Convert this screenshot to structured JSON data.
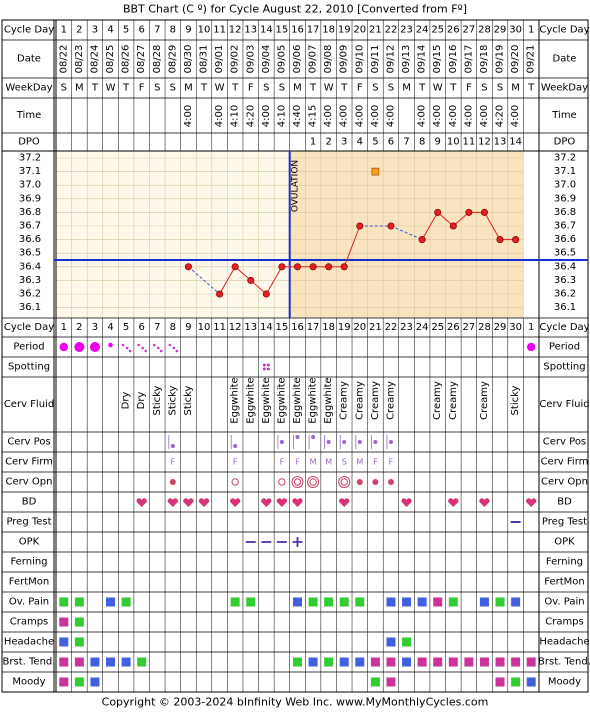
{
  "title": "BBT Chart (C º) for Cycle August 22, 2010  [Converted from Fº]",
  "copyright": "Copyright © 2003-2024 bInfinity Web Inc.    www.MyMonthlyCycles.com",
  "row_labels": {
    "cycle_day": "Cycle Day",
    "date": "Date",
    "weekday": "WeekDay",
    "time": "Time",
    "dpo": "DPO",
    "period": "Period",
    "spotting": "Spotting",
    "cerv_fluid": "Cerv Fluid",
    "cerv_pos": "Cerv Pos",
    "cerv_firm": "Cerv Firm",
    "cerv_opn": "Cerv Opn",
    "bd": "BD",
    "preg_test": "Preg Test",
    "opk": "OPK",
    "ferning": "Ferning",
    "fertmon": "FertMon",
    "ov_pain": "Ov. Pain",
    "cramps": "Cramps",
    "headache": "Headache",
    "brst_tend": "Brst. Tend.",
    "moody": "Moody"
  },
  "columns": {
    "cycle_day": [
      "1",
      "2",
      "3",
      "4",
      "5",
      "6",
      "7",
      "8",
      "9",
      "10",
      "11",
      "12",
      "13",
      "14",
      "15",
      "16",
      "17",
      "18",
      "19",
      "20",
      "21",
      "22",
      "23",
      "24",
      "25",
      "26",
      "27",
      "28",
      "29",
      "30",
      "1"
    ],
    "date": [
      "08/22",
      "08/23",
      "08/24",
      "08/25",
      "08/26",
      "08/27",
      "08/28",
      "08/29",
      "08/30",
      "08/31",
      "09/01",
      "09/02",
      "09/03",
      "09/04",
      "09/05",
      "09/06",
      "09/07",
      "09/08",
      "09/09",
      "09/10",
      "09/11",
      "09/12",
      "09/13",
      "09/14",
      "09/15",
      "09/16",
      "09/17",
      "09/18",
      "09/19",
      "09/20",
      "09/21"
    ],
    "weekday": [
      "S",
      "M",
      "T",
      "W",
      "T",
      "F",
      "S",
      "S",
      "M",
      "T",
      "W",
      "T",
      "F",
      "S",
      "S",
      "M",
      "T",
      "W",
      "T",
      "F",
      "S",
      "S",
      "M",
      "T",
      "W",
      "T",
      "F",
      "S",
      "S",
      "M",
      "T"
    ],
    "time": [
      "",
      "",
      "",
      "",
      "",
      "",
      "",
      "",
      "4:00",
      "",
      "4:00",
      "4:10",
      "4:20",
      "4:00",
      "4:10",
      "4:40",
      "4:15",
      "4:00",
      "4:00",
      "4:00",
      "4:00",
      "4:00",
      "",
      "4:00",
      "4:00",
      "4:00",
      "4:00",
      "4:00",
      "4:20",
      "4:00",
      ""
    ],
    "dpo": [
      "",
      "",
      "",
      "",
      "",
      "",
      "",
      "",
      "",
      "",
      "",
      "",
      "",
      "",
      "",
      "",
      "1",
      "2",
      "3",
      "4",
      "5",
      "6",
      "7",
      "8",
      "9",
      "10",
      "11",
      "12",
      "13",
      "14",
      ""
    ],
    "cerv_fluid": [
      "",
      "",
      "",
      "",
      "Dry",
      "Dry",
      "Sticky",
      "Sticky",
      "Sticky",
      "",
      "",
      "Eggwhite",
      "Eggwhite",
      "Eggwhite",
      "Eggwhite",
      "Eggwhite",
      "Eggwhite",
      "Eggwhite",
      "Creamy",
      "Creamy",
      "Creamy",
      "Creamy",
      "",
      "",
      "Creamy",
      "Creamy",
      "",
      "Creamy",
      "",
      "Sticky",
      ""
    ],
    "cerv_firm": [
      "",
      "",
      "",
      "",
      "",
      "",
      "",
      "F",
      "",
      "",
      "",
      "F",
      "",
      "",
      "F",
      "F",
      "M",
      "M",
      "S",
      "M",
      "F",
      "F",
      "",
      "",
      "",
      "",
      "",
      "",
      "",
      "",
      ""
    ],
    "period": [
      "medium",
      "heavy",
      "heavy",
      "light",
      "spot",
      "spot",
      "spot",
      "spot",
      "",
      "",
      "",
      "",
      "",
      "",
      "",
      "",
      "",
      "",
      "",
      "",
      "",
      "",
      "",
      "",
      "",
      "",
      "",
      "",
      "",
      "",
      "medium"
    ],
    "cerv_pos": [
      "",
      "",
      "",
      "",
      "",
      "",
      "",
      "low",
      "",
      "",
      "",
      "low",
      "",
      "",
      "mid",
      "high",
      "high",
      "mid",
      "mid",
      "mid",
      "mid",
      "mid",
      "",
      "",
      "",
      "",
      "",
      "",
      "",
      "",
      ""
    ],
    "cerv_opn": [
      "",
      "",
      "",
      "",
      "",
      "",
      "",
      "closed",
      "",
      "",
      "",
      "open",
      "",
      "",
      "open",
      "wide",
      "wide",
      "",
      "wide",
      "closed",
      "closed",
      "closed",
      "",
      "",
      "",
      "",
      "",
      "",
      "",
      "",
      ""
    ],
    "bd": [
      0,
      0,
      0,
      0,
      0,
      1,
      0,
      1,
      1,
      1,
      0,
      1,
      0,
      1,
      1,
      1,
      0,
      0,
      1,
      0,
      0,
      0,
      1,
      0,
      0,
      1,
      0,
      1,
      0,
      0,
      1
    ],
    "preg_test": [
      "",
      "",
      "",
      "",
      "",
      "",
      "",
      "",
      "",
      "",
      "",
      "",
      "",
      "",
      "",
      "",
      "",
      "",
      "",
      "",
      "",
      "",
      "",
      "",
      "",
      "",
      "",
      "",
      "",
      "neg",
      ""
    ],
    "opk": [
      "",
      "",
      "",
      "",
      "",
      "",
      "",
      "",
      "",
      "",
      "",
      "",
      "neg",
      "neg",
      "neg",
      "pos",
      "",
      "",
      "",
      "",
      "",
      "",
      "",
      "",
      "",
      "",
      "",
      "",
      "",
      "",
      ""
    ],
    "spotting": [
      0,
      0,
      0,
      0,
      0,
      0,
      0,
      0,
      0,
      0,
      0,
      0,
      0,
      1,
      0,
      0,
      0,
      0,
      0,
      0,
      0,
      0,
      0,
      0,
      0,
      0,
      0,
      0,
      0,
      0,
      0
    ],
    "ov_pain": [
      "g",
      "g",
      "",
      "b",
      "g",
      "",
      "",
      "",
      "",
      "",
      "",
      "g",
      "g",
      "",
      "",
      "b",
      "g",
      "g",
      "g",
      "g",
      "",
      "b",
      "b",
      "b",
      "m",
      "g",
      "",
      "b",
      "g",
      "b",
      ""
    ],
    "cramps": [
      "m",
      "g",
      "",
      "",
      "",
      "",
      "",
      "",
      "",
      "",
      "",
      "",
      "",
      "",
      "",
      "",
      "",
      "",
      "",
      "",
      "",
      "",
      "",
      "",
      "",
      "",
      "",
      "",
      "",
      "",
      ""
    ],
    "headache": [
      "b",
      "g",
      "",
      "",
      "",
      "",
      "",
      "",
      "",
      "",
      "",
      "",
      "",
      "",
      "",
      "",
      "",
      "",
      "",
      "",
      "",
      "b",
      "g",
      "",
      "",
      "",
      "",
      "",
      "",
      "",
      ""
    ],
    "brst_tend": [
      "m",
      "m",
      "b",
      "b",
      "b",
      "g",
      "",
      "",
      "",
      "",
      "",
      "",
      "",
      "",
      "",
      "g",
      "b",
      "g",
      "b",
      "b",
      "m",
      "m",
      "b",
      "m",
      "m",
      "m",
      "m",
      "m",
      "m",
      "m",
      "m"
    ],
    "moody": [
      "m",
      "g",
      "b",
      "",
      "",
      "",
      "",
      "",
      "",
      "",
      "",
      "",
      "",
      "",
      "",
      "",
      "",
      "",
      "",
      "",
      "g",
      "m",
      "",
      "",
      "",
      "",
      "",
      "",
      "m",
      "g",
      "b"
    ]
  },
  "chart_data": {
    "type": "line",
    "title": "BBT Chart (C º) for Cycle August 22, 2010  [Converted from Fº]",
    "ylabel": "",
    "ylim": [
      36.1,
      37.2
    ],
    "y_ticks": [
      "37.2",
      "37.1",
      "37.0",
      "36.9",
      "36.8",
      "36.7",
      "36.6",
      "36.5",
      "36.4",
      "36.3",
      "36.2",
      "36.1"
    ],
    "coverline": 36.45,
    "ovulation_day": 15.5,
    "ovulation_label": "OVULATION",
    "cycle_days": [
      9,
      11,
      12,
      13,
      14,
      15,
      16,
      17,
      18,
      19,
      20,
      22,
      24,
      25,
      26,
      27,
      28,
      29,
      30
    ],
    "temperatures": [
      36.4,
      36.2,
      36.4,
      36.3,
      36.2,
      36.4,
      36.4,
      36.4,
      36.4,
      36.4,
      36.7,
      36.7,
      36.6,
      36.8,
      36.7,
      36.8,
      36.8,
      36.6,
      36.6
    ],
    "pregnancy_test_marker": {
      "day": 21,
      "value": 37.1
    },
    "grid": true
  },
  "colors": {
    "pre_bg": "#fdf8ea",
    "post_bg": "#f8e4bf",
    "grid": "#d9c9a2",
    "line": "#e02020",
    "coverline": "#1a2fd0",
    "period": "#ee00ee",
    "spot": "#cc33cc",
    "purple": "#9966cc",
    "heart": "#d6337a",
    "g": "#33cc33",
    "b": "#4060e0",
    "m": "#cc3399",
    "marker": "#ff9a20"
  }
}
